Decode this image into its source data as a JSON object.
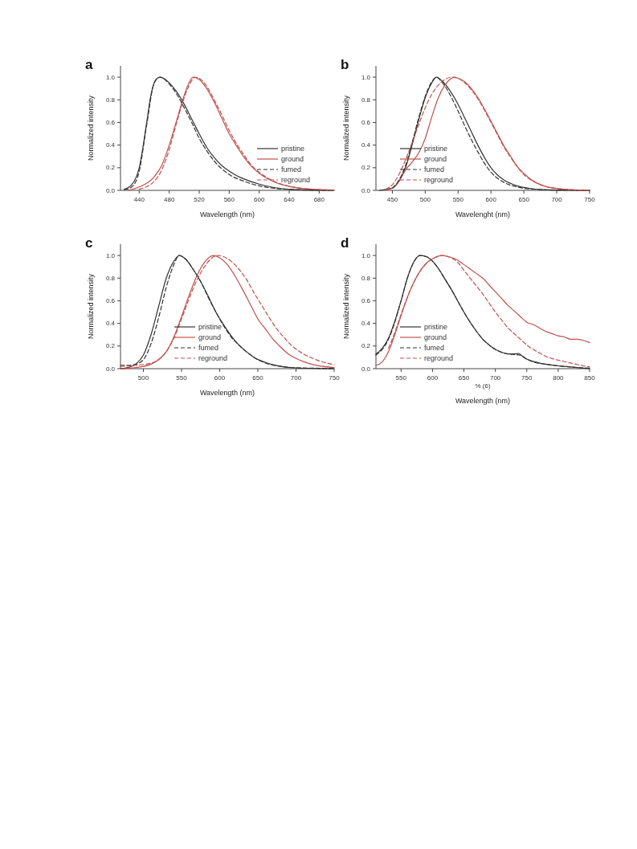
{
  "chart_data": [
    {
      "type": "line",
      "title": "a",
      "xlabel": "Wavelength (nm)",
      "ylabel": "Normalized intensity",
      "xlim": [
        415,
        700
      ],
      "xticks": [
        440,
        480,
        520,
        560,
        600,
        640,
        680
      ],
      "ylim": [
        0,
        1.1
      ],
      "yticks": [
        {
          "value": 0,
          "label": "0.0"
        },
        {
          "value": 0.2,
          "label": "0.2"
        },
        {
          "value": 0.4,
          "label": "0.4"
        },
        {
          "value": 0.6,
          "label": "0.6"
        },
        {
          "value": 0.8,
          "label": "0.8"
        },
        {
          "value": 1,
          "label": "1.0"
        }
      ],
      "legend": "bottom right",
      "grid": false,
      "marker": "none",
      "series": [
        {
          "name": "pristine",
          "color": "#333333",
          "line_style": "solid",
          "x": [
            420,
            430,
            440,
            450,
            455,
            460,
            465,
            468,
            475,
            480,
            490,
            500,
            510,
            520,
            530,
            540,
            550,
            560,
            570,
            580,
            600,
            620,
            640,
            660,
            700
          ],
          "values": [
            0.01,
            0.05,
            0.2,
            0.6,
            0.82,
            0.95,
            0.995,
            1.0,
            0.98,
            0.95,
            0.87,
            0.76,
            0.63,
            0.5,
            0.38,
            0.29,
            0.22,
            0.17,
            0.13,
            0.1,
            0.055,
            0.025,
            0.01,
            0.005,
            0
          ]
        },
        {
          "name": "ground",
          "color": "#c0504d",
          "line_style": "solid",
          "x": [
            425,
            440,
            460,
            470,
            480,
            490,
            500,
            505,
            512,
            520,
            530,
            540,
            550,
            560,
            570,
            580,
            590,
            600,
            620,
            640,
            660,
            680,
            700
          ],
          "values": [
            0,
            0.03,
            0.12,
            0.22,
            0.4,
            0.62,
            0.84,
            0.93,
            1.0,
            0.98,
            0.9,
            0.78,
            0.64,
            0.5,
            0.39,
            0.29,
            0.21,
            0.15,
            0.075,
            0.035,
            0.015,
            0.007,
            0.003
          ]
        },
        {
          "name": "fumed",
          "color": "#333333",
          "line_style": "dashed",
          "x": [
            420,
            430,
            440,
            450,
            460,
            468,
            480,
            490,
            500,
            510,
            520,
            530,
            540,
            560,
            580,
            600,
            620,
            640,
            660,
            700
          ],
          "values": [
            0.005,
            0.03,
            0.17,
            0.58,
            0.95,
            1.0,
            0.94,
            0.85,
            0.73,
            0.6,
            0.46,
            0.35,
            0.26,
            0.14,
            0.08,
            0.04,
            0.018,
            0.008,
            0.003,
            0
          ]
        },
        {
          "name": "reground",
          "color": "#c0504d",
          "line_style": "dashed",
          "x": [
            440,
            460,
            470,
            480,
            490,
            500,
            510,
            514,
            520,
            530,
            540,
            550,
            560,
            570,
            580,
            590,
            600,
            620,
            640,
            660,
            700
          ],
          "values": [
            0.01,
            0.08,
            0.18,
            0.36,
            0.6,
            0.82,
            0.97,
            1.0,
            0.99,
            0.92,
            0.8,
            0.67,
            0.53,
            0.41,
            0.31,
            0.22,
            0.16,
            0.08,
            0.037,
            0.016,
            0.003
          ]
        }
      ]
    },
    {
      "type": "line",
      "title": "b",
      "xlabel": "Wavelenght (nm)",
      "ylabel": "Normalized intensity",
      "xlim": [
        425,
        750
      ],
      "xticks": [
        450,
        500,
        550,
        600,
        650,
        700,
        750
      ],
      "ylim": [
        0,
        1.1
      ],
      "yticks": [
        {
          "value": 0,
          "label": "0.0"
        },
        {
          "value": 0.2,
          "label": "0.2"
        },
        {
          "value": 0.4,
          "label": "0.4"
        },
        {
          "value": 0.6,
          "label": "0.6"
        },
        {
          "value": 0.8,
          "label": "0.8"
        },
        {
          "value": 1,
          "label": "1.0"
        }
      ],
      "legend": "bottom left",
      "grid": false,
      "marker": "none",
      "series": [
        {
          "name": "pristine",
          "color": "#333333",
          "line_style": "solid",
          "x": [
            430,
            450,
            460,
            470,
            480,
            490,
            500,
            510,
            517,
            525,
            540,
            550,
            560,
            570,
            580,
            590,
            600,
            620,
            640,
            660,
            680,
            700,
            750
          ],
          "values": [
            0,
            0.02,
            0.08,
            0.2,
            0.4,
            0.62,
            0.82,
            0.95,
            1.0,
            0.97,
            0.86,
            0.76,
            0.64,
            0.52,
            0.4,
            0.29,
            0.2,
            0.09,
            0.04,
            0.016,
            0.006,
            0.002,
            0
          ]
        },
        {
          "name": "ground",
          "color": "#c0504d",
          "line_style": "solid",
          "x": [
            440,
            450,
            460,
            470,
            480,
            490,
            500,
            510,
            520,
            530,
            545,
            550,
            560,
            570,
            580,
            590,
            600,
            610,
            620,
            630,
            640,
            650,
            660,
            680,
            700,
            720,
            750
          ],
          "values": [
            0.005,
            0.02,
            0.08,
            0.18,
            0.25,
            0.33,
            0.46,
            0.65,
            0.82,
            0.93,
            1.0,
            0.99,
            0.96,
            0.9,
            0.82,
            0.72,
            0.61,
            0.5,
            0.39,
            0.3,
            0.21,
            0.15,
            0.1,
            0.04,
            0.017,
            0.006,
            0
          ]
        },
        {
          "name": "fumed",
          "color": "#333333",
          "line_style": "dashed",
          "x": [
            450,
            460,
            470,
            480,
            490,
            500,
            510,
            517,
            525,
            540,
            550,
            560,
            570,
            580,
            590,
            600,
            620,
            640,
            660,
            700,
            750
          ],
          "values": [
            0.02,
            0.09,
            0.22,
            0.42,
            0.64,
            0.83,
            0.96,
            1.0,
            0.96,
            0.82,
            0.7,
            0.57,
            0.45,
            0.34,
            0.24,
            0.16,
            0.07,
            0.03,
            0.012,
            0.002,
            0
          ]
        },
        {
          "name": "reground",
          "color": "#c0504d",
          "line_style": "dashed",
          "x": [
            440,
            450,
            460,
            470,
            480,
            490,
            500,
            510,
            520,
            530,
            540,
            550,
            560,
            570,
            580,
            590,
            600,
            610,
            620,
            630,
            640,
            650,
            660,
            680,
            700,
            750
          ],
          "values": [
            0.01,
            0.05,
            0.14,
            0.27,
            0.42,
            0.58,
            0.73,
            0.85,
            0.93,
            0.98,
            1.0,
            0.99,
            0.95,
            0.89,
            0.81,
            0.71,
            0.6,
            0.49,
            0.38,
            0.29,
            0.21,
            0.14,
            0.095,
            0.04,
            0.016,
            0
          ]
        }
      ]
    },
    {
      "type": "line",
      "title": "c",
      "xlabel": "Wavelength (nm)",
      "ylabel": "Normalized intensity",
      "xlim": [
        470,
        750
      ],
      "xticks": [
        500,
        550,
        600,
        650,
        700,
        750
      ],
      "ylim": [
        0,
        1.1
      ],
      "yticks": [
        {
          "value": 0,
          "label": "0.0"
        },
        {
          "value": 0.2,
          "label": "0.2"
        },
        {
          "value": 0.4,
          "label": "0.4"
        },
        {
          "value": 0.6,
          "label": "0.6"
        },
        {
          "value": 0.8,
          "label": "0.8"
        },
        {
          "value": 1,
          "label": "1.0"
        }
      ],
      "legend": "bottom",
      "grid": false,
      "marker": "none",
      "series": [
        {
          "name": "pristine",
          "color": "#333333",
          "line_style": "solid",
          "x": [
            470,
            480,
            490,
            500,
            510,
            520,
            530,
            540,
            547,
            555,
            565,
            575,
            585,
            595,
            605,
            615,
            625,
            635,
            645,
            660,
            680,
            700,
            750
          ],
          "values": [
            0,
            0.01,
            0.04,
            0.12,
            0.3,
            0.55,
            0.8,
            0.95,
            1.0,
            0.97,
            0.88,
            0.77,
            0.64,
            0.5,
            0.39,
            0.29,
            0.21,
            0.15,
            0.1,
            0.055,
            0.02,
            0.007,
            0
          ]
        },
        {
          "name": "ground",
          "color": "#c0504d",
          "line_style": "solid",
          "x": [
            470,
            490,
            510,
            520,
            530,
            540,
            550,
            560,
            570,
            580,
            592,
            600,
            610,
            620,
            630,
            640,
            650,
            660,
            670,
            680,
            690,
            700,
            720,
            750
          ],
          "values": [
            0,
            0.01,
            0.04,
            0.08,
            0.15,
            0.28,
            0.46,
            0.65,
            0.82,
            0.94,
            1.0,
            0.98,
            0.92,
            0.82,
            0.7,
            0.57,
            0.44,
            0.35,
            0.26,
            0.19,
            0.13,
            0.09,
            0.04,
            0.01
          ]
        },
        {
          "name": "fumed",
          "color": "#333333",
          "line_style": "dashed",
          "x": [
            470,
            480,
            490,
            500,
            510,
            520,
            530,
            540,
            547,
            555,
            565,
            575,
            585,
            595,
            605,
            615,
            625,
            635,
            645,
            660,
            680,
            700,
            750
          ],
          "values": [
            0.03,
            0.03,
            0.04,
            0.08,
            0.22,
            0.45,
            0.72,
            0.92,
            1.0,
            0.97,
            0.88,
            0.77,
            0.63,
            0.5,
            0.38,
            0.28,
            0.21,
            0.15,
            0.1,
            0.05,
            0.02,
            0.008,
            0.002
          ]
        },
        {
          "name": "reground",
          "color": "#c0504d",
          "line_style": "dashed",
          "x": [
            470,
            490,
            510,
            520,
            530,
            540,
            550,
            560,
            570,
            580,
            590,
            598,
            605,
            615,
            625,
            635,
            645,
            655,
            665,
            675,
            685,
            695,
            710,
            730,
            750
          ],
          "values": [
            0.02,
            0.03,
            0.05,
            0.08,
            0.15,
            0.27,
            0.44,
            0.62,
            0.78,
            0.9,
            0.98,
            1.0,
            0.99,
            0.95,
            0.88,
            0.79,
            0.67,
            0.56,
            0.45,
            0.35,
            0.27,
            0.2,
            0.13,
            0.07,
            0.035
          ]
        }
      ]
    },
    {
      "type": "line",
      "title": "d",
      "xlabel": "Wavelength (nm)",
      "ylabel": "Normalized intensity",
      "annotations": [
        "% (6)"
      ],
      "xlim": [
        510,
        850
      ],
      "xticks": [
        550,
        600,
        650,
        700,
        750,
        800,
        850
      ],
      "ylim": [
        0,
        1.1
      ],
      "yticks": [
        {
          "value": 0,
          "label": "0.0"
        },
        {
          "value": 0.2,
          "label": "0.2"
        },
        {
          "value": 0.4,
          "label": "0.4"
        },
        {
          "value": 0.6,
          "label": "0.6"
        },
        {
          "value": 0.8,
          "label": "0.8"
        },
        {
          "value": 1,
          "label": "1.0"
        }
      ],
      "legend": "bottom left",
      "grid": false,
      "marker": "none",
      "series": [
        {
          "name": "pristine",
          "color": "#333333",
          "line_style": "solid",
          "x": [
            510,
            520,
            530,
            540,
            550,
            560,
            570,
            580,
            590,
            600,
            610,
            620,
            630,
            640,
            650,
            660,
            670,
            680,
            690,
            700,
            710,
            720,
            730,
            737,
            745,
            760,
            780,
            800,
            820,
            840,
            850
          ],
          "values": [
            0.13,
            0.18,
            0.27,
            0.42,
            0.6,
            0.8,
            0.94,
            1.0,
            0.99,
            0.95,
            0.88,
            0.79,
            0.7,
            0.6,
            0.5,
            0.41,
            0.33,
            0.26,
            0.21,
            0.17,
            0.145,
            0.13,
            0.13,
            0.135,
            0.1,
            0.065,
            0.04,
            0.025,
            0.015,
            0.005,
            0
          ]
        },
        {
          "name": "ground",
          "color": "#c0504d",
          "line_style": "solid",
          "x": [
            510,
            520,
            530,
            540,
            550,
            560,
            570,
            580,
            590,
            600,
            615,
            625,
            640,
            650,
            660,
            670,
            680,
            690,
            700,
            710,
            720,
            730,
            740,
            750,
            760,
            770,
            780,
            790,
            800,
            810,
            820,
            830,
            840,
            850
          ],
          "values": [
            0.03,
            0.06,
            0.15,
            0.3,
            0.47,
            0.63,
            0.76,
            0.86,
            0.93,
            0.97,
            1.0,
            0.99,
            0.96,
            0.92,
            0.88,
            0.84,
            0.8,
            0.74,
            0.68,
            0.62,
            0.56,
            0.51,
            0.46,
            0.41,
            0.39,
            0.36,
            0.33,
            0.31,
            0.29,
            0.28,
            0.26,
            0.26,
            0.25,
            0.23
          ]
        },
        {
          "name": "fumed",
          "color": "#333333",
          "line_style": "dashed",
          "x": [
            510,
            520,
            530,
            540,
            550,
            560,
            570,
            580,
            590,
            600,
            610,
            620,
            630,
            640,
            650,
            660,
            670,
            680,
            690,
            700,
            710,
            720,
            730,
            740,
            750,
            760,
            780,
            800,
            820,
            840,
            850
          ],
          "values": [
            0.12,
            0.17,
            0.26,
            0.41,
            0.6,
            0.8,
            0.94,
            1.0,
            0.99,
            0.95,
            0.88,
            0.79,
            0.7,
            0.6,
            0.5,
            0.41,
            0.33,
            0.26,
            0.21,
            0.17,
            0.145,
            0.13,
            0.125,
            0.12,
            0.085,
            0.06,
            0.04,
            0.025,
            0.015,
            0.007,
            0.005
          ]
        },
        {
          "name": "reground",
          "color": "#c0504d",
          "line_style": "dashed",
          "x": [
            530,
            540,
            550,
            560,
            570,
            580,
            590,
            600,
            615,
            625,
            640,
            650,
            660,
            670,
            680,
            690,
            700,
            710,
            720,
            730,
            740,
            750,
            760,
            770,
            780,
            790,
            800,
            820,
            840,
            850
          ],
          "values": [
            0.18,
            0.32,
            0.48,
            0.63,
            0.76,
            0.86,
            0.93,
            0.97,
            1.0,
            0.99,
            0.94,
            0.87,
            0.8,
            0.73,
            0.66,
            0.58,
            0.5,
            0.43,
            0.36,
            0.31,
            0.26,
            0.21,
            0.17,
            0.14,
            0.11,
            0.09,
            0.075,
            0.05,
            0.025,
            0.015
          ]
        }
      ]
    }
  ]
}
